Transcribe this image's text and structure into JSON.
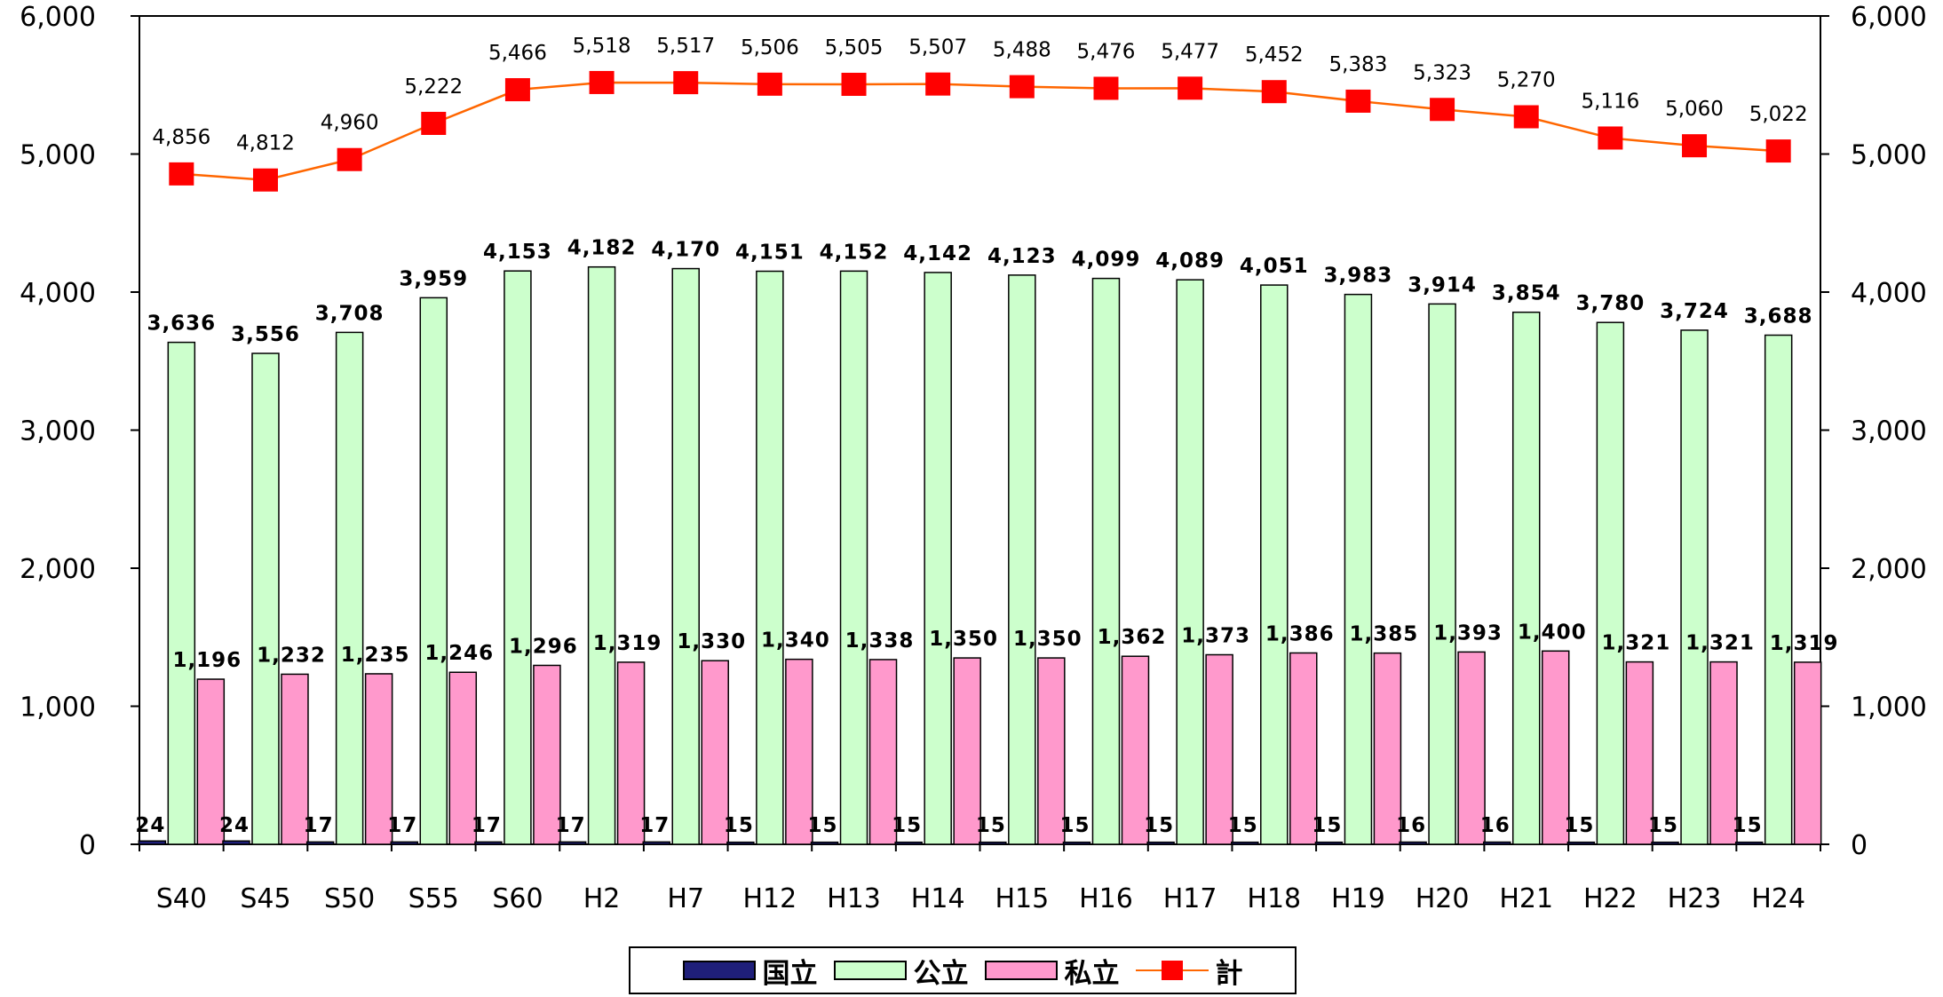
{
  "chart_data": {
    "type": "bar+line",
    "categories": [
      "S40",
      "S45",
      "S50",
      "S55",
      "S60",
      "H2",
      "H7",
      "H12",
      "H13",
      "H14",
      "H15",
      "H16",
      "H17",
      "H18",
      "H19",
      "H20",
      "H21",
      "H22",
      "H23",
      "H24"
    ],
    "series": [
      {
        "name": "国立",
        "type": "bar",
        "color": "#1f1f7a",
        "values": [
          24,
          24,
          17,
          17,
          17,
          17,
          17,
          15,
          15,
          15,
          15,
          15,
          15,
          15,
          15,
          16,
          16,
          15,
          15,
          15
        ]
      },
      {
        "name": "公立",
        "type": "bar",
        "color": "#ccffcc",
        "values": [
          3636,
          3556,
          3708,
          3959,
          4153,
          4182,
          4170,
          4151,
          4152,
          4142,
          4123,
          4099,
          4089,
          4051,
          3983,
          3914,
          3854,
          3780,
          3724,
          3688
        ]
      },
      {
        "name": "私立",
        "type": "bar",
        "color": "#ff99cc",
        "values": [
          1196,
          1232,
          1235,
          1246,
          1296,
          1319,
          1330,
          1340,
          1338,
          1350,
          1350,
          1362,
          1373,
          1386,
          1385,
          1393,
          1400,
          1321,
          1321,
          1319
        ]
      },
      {
        "name": "計",
        "type": "line",
        "color": "#ff6600",
        "marker_color": "#ff0000",
        "values": [
          4856,
          4812,
          4960,
          5222,
          5466,
          5518,
          5517,
          5506,
          5505,
          5507,
          5488,
          5476,
          5477,
          5452,
          5383,
          5323,
          5270,
          5116,
          5060,
          5022
        ]
      }
    ],
    "display_labels": {
      "国立": [
        "24",
        "24",
        "17",
        "17",
        "17",
        "17",
        "17",
        "15",
        "15",
        "15",
        "15",
        "15",
        "15",
        "15",
        "15",
        "16",
        "16",
        "15",
        "15",
        "15"
      ],
      "公立": [
        "3,636",
        "3,556",
        "3,708",
        "3,959",
        "4,153",
        "4,182",
        "4,170",
        "4,151",
        "4,152",
        "4,142",
        "4,123",
        "4,099",
        "4,089",
        "4,051",
        "3,983",
        "3,914",
        "3,854",
        "3,780",
        "3,724",
        "3,688"
      ],
      "私立": [
        "1,196",
        "1,232",
        "1,235",
        "1,246",
        "1,296",
        "1,319",
        "1,330",
        "1,340",
        "1,338",
        "1,350",
        "1,350",
        "1,362",
        "1,373",
        "1,386",
        "1,385",
        "1,393",
        "1,400",
        "1,321",
        "1,321",
        "1,319"
      ],
      "計": [
        "4,856",
        "4,812",
        "4,960",
        "5,222",
        "5,466",
        "5,518",
        "5,517",
        "5,506",
        "5,505",
        "5,507",
        "5,488",
        "5,476",
        "5,477",
        "5,452",
        "5,383",
        "5,323",
        "5,270",
        "5,116",
        "5,060",
        "5,022"
      ]
    },
    "y_ticks": [
      "0",
      "1,000",
      "2,000",
      "3,000",
      "4,000",
      "5,000",
      "6,000"
    ],
    "ylim": [
      0,
      6000
    ],
    "y_axis_right_duplicate": true,
    "grid": false,
    "legend_position": "bottom",
    "title": "",
    "xlabel": "",
    "ylabel": ""
  },
  "legend": {
    "items": [
      {
        "label": "国立",
        "kind": "bar",
        "color": "#1f1f7a"
      },
      {
        "label": "公立",
        "kind": "bar",
        "color": "#ccffcc"
      },
      {
        "label": "私立",
        "kind": "bar",
        "color": "#ff99cc"
      },
      {
        "label": "計",
        "kind": "line",
        "color": "#ff6600",
        "marker_color": "#ff0000"
      }
    ]
  }
}
